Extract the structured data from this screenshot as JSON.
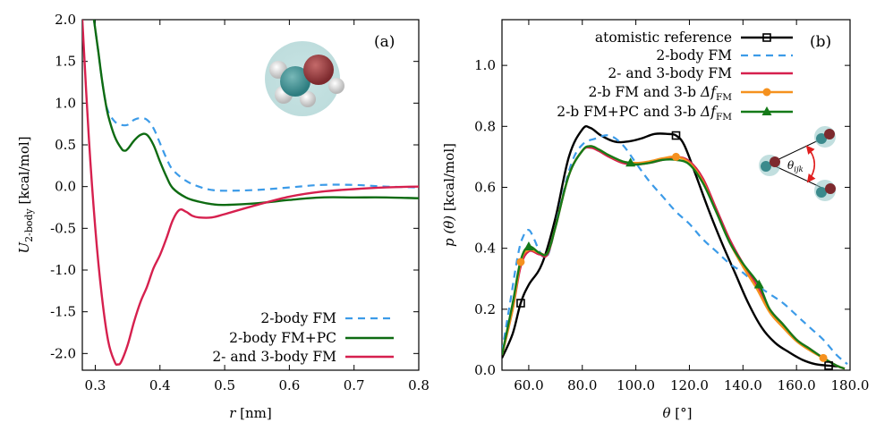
{
  "chart_data": [
    {
      "type": "line",
      "panel_label": "(a)",
      "xlabel_var": "r",
      "xlabel_unit": " [nm]",
      "ylabel_main": "U",
      "ylabel_sub": "2-body",
      "ylabel_unit": " [kcal/mol]",
      "xlim": [
        0.28,
        0.8
      ],
      "ylim": [
        -2.2,
        2.0
      ],
      "xticks": [
        "0.3",
        "0.4",
        "0.5",
        "0.6",
        "0.7",
        "0.8"
      ],
      "xtick_values": [
        0.3,
        0.4,
        0.5,
        0.6,
        0.7,
        0.8
      ],
      "yticks": [
        "2.0",
        "1.5",
        "1.0",
        "0.5",
        "0.0",
        "-0.5",
        "-1.0",
        "-1.5",
        "-2.0"
      ],
      "ytick_values": [
        2.0,
        1.5,
        1.0,
        0.5,
        0.0,
        -0.5,
        -1.0,
        -1.5,
        -2.0
      ],
      "legend_position": "bottom-right",
      "series": [
        {
          "name": "2-body FM",
          "color": "#3c9be8",
          "dash": "dashed",
          "x": [
            0.298,
            0.305,
            0.31,
            0.315,
            0.32,
            0.33,
            0.34,
            0.35,
            0.36,
            0.37,
            0.38,
            0.39,
            0.4,
            0.41,
            0.42,
            0.44,
            0.46,
            0.48,
            0.5,
            0.55,
            0.6,
            0.65,
            0.7,
            0.75,
            0.8
          ],
          "y": [
            2.0,
            1.6,
            1.3,
            1.05,
            0.9,
            0.78,
            0.74,
            0.74,
            0.8,
            0.82,
            0.8,
            0.7,
            0.52,
            0.34,
            0.2,
            0.07,
            0.0,
            -0.04,
            -0.05,
            -0.04,
            -0.01,
            0.02,
            0.02,
            0.0,
            -0.01
          ]
        },
        {
          "name": "2-body FM+PC",
          "color": "#0e6b12",
          "dash": "solid",
          "x": [
            0.298,
            0.305,
            0.31,
            0.315,
            0.32,
            0.33,
            0.34,
            0.345,
            0.35,
            0.36,
            0.37,
            0.38,
            0.39,
            0.4,
            0.41,
            0.42,
            0.44,
            0.46,
            0.48,
            0.5,
            0.55,
            0.6,
            0.65,
            0.7,
            0.75,
            0.8
          ],
          "y": [
            2.0,
            1.6,
            1.3,
            1.05,
            0.85,
            0.6,
            0.46,
            0.43,
            0.45,
            0.55,
            0.62,
            0.62,
            0.5,
            0.3,
            0.12,
            -0.02,
            -0.13,
            -0.18,
            -0.21,
            -0.22,
            -0.2,
            -0.16,
            -0.13,
            -0.13,
            -0.13,
            -0.14
          ]
        },
        {
          "name": "2- and 3-body FM",
          "color": "#d6204e",
          "dash": "solid",
          "x": [
            0.28,
            0.29,
            0.3,
            0.31,
            0.32,
            0.33,
            0.335,
            0.34,
            0.35,
            0.36,
            0.37,
            0.38,
            0.39,
            0.4,
            0.41,
            0.42,
            0.43,
            0.44,
            0.45,
            0.46,
            0.48,
            0.5,
            0.55,
            0.6,
            0.65,
            0.7,
            0.75,
            0.8
          ],
          "y": [
            2.0,
            0.6,
            -0.5,
            -1.3,
            -1.85,
            -2.1,
            -2.13,
            -2.1,
            -1.9,
            -1.62,
            -1.38,
            -1.2,
            -0.98,
            -0.82,
            -0.62,
            -0.4,
            -0.28,
            -0.3,
            -0.35,
            -0.37,
            -0.37,
            -0.33,
            -0.22,
            -0.12,
            -0.06,
            -0.03,
            -0.01,
            0.0
          ]
        }
      ]
    },
    {
      "type": "line",
      "panel_label": "(b)",
      "xlabel_var": "θ",
      "xlabel_unit": " [°]",
      "ylabel_main": "p (θ)",
      "ylabel_unit": " [kcal/mol]",
      "xlim": [
        50,
        180
      ],
      "ylim": [
        0,
        1.15
      ],
      "xticks": [
        "60.0",
        "80.0",
        "100.0",
        "120.0",
        "140.0",
        "160.0",
        "180.0"
      ],
      "xtick_values": [
        60,
        80,
        100,
        120,
        140,
        160,
        180
      ],
      "yticks": [
        "0.0",
        "0.2",
        "0.4",
        "0.6",
        "0.8",
        "1.0"
      ],
      "ytick_values": [
        0.0,
        0.2,
        0.4,
        0.6,
        0.8,
        1.0
      ],
      "legend_position": "top-right",
      "inset_label": "θ",
      "inset_label_sub": "ijk",
      "series": [
        {
          "name": "atomistic reference",
          "color": "#000000",
          "dash": "solid",
          "marker": "square",
          "x": [
            50,
            54,
            57,
            60,
            65,
            70,
            75,
            80,
            83,
            87,
            92,
            97,
            102,
            107,
            112,
            115,
            118,
            122,
            127,
            132,
            137,
            142,
            147,
            152,
            157,
            162,
            167,
            172,
            176
          ],
          "y": [
            0.04,
            0.12,
            0.22,
            0.28,
            0.35,
            0.5,
            0.7,
            0.79,
            0.795,
            0.77,
            0.75,
            0.75,
            0.76,
            0.775,
            0.775,
            0.77,
            0.74,
            0.65,
            0.53,
            0.42,
            0.32,
            0.22,
            0.14,
            0.09,
            0.06,
            0.035,
            0.02,
            0.015,
            0.012
          ],
          "marker_indices": [
            2,
            15,
            27
          ]
        },
        {
          "name": "2-body FM",
          "color": "#3c9be8",
          "dash": "dashed",
          "x": [
            50,
            53,
            56,
            58,
            60,
            62,
            64,
            66,
            68,
            72,
            76,
            80,
            85,
            90,
            95,
            100,
            105,
            110,
            115,
            120,
            125,
            130,
            135,
            140,
            145,
            150,
            155,
            160,
            165,
            170,
            175,
            179
          ],
          "y": [
            0.06,
            0.22,
            0.38,
            0.44,
            0.46,
            0.43,
            0.39,
            0.37,
            0.4,
            0.55,
            0.68,
            0.74,
            0.76,
            0.77,
            0.74,
            0.68,
            0.62,
            0.57,
            0.52,
            0.48,
            0.43,
            0.39,
            0.35,
            0.32,
            0.28,
            0.25,
            0.22,
            0.18,
            0.14,
            0.1,
            0.05,
            0.02
          ]
        },
        {
          "name": "2- and 3-body FM",
          "color": "#d6204e",
          "dash": "solid",
          "x": [
            50,
            54,
            57,
            60,
            64,
            67,
            70,
            75,
            80,
            83,
            86,
            90,
            95,
            100,
            105,
            110,
            115,
            120,
            125,
            130,
            135,
            140,
            145,
            150,
            155,
            160,
            165,
            170,
            175,
            178
          ],
          "y": [
            0.05,
            0.2,
            0.34,
            0.39,
            0.38,
            0.38,
            0.47,
            0.64,
            0.72,
            0.73,
            0.72,
            0.7,
            0.68,
            0.675,
            0.68,
            0.69,
            0.7,
            0.685,
            0.63,
            0.53,
            0.43,
            0.35,
            0.28,
            0.2,
            0.15,
            0.1,
            0.07,
            0.04,
            0.015,
            0.005
          ]
        },
        {
          "name": "2-b FM and 3-b ",
          "name_math": "Δf",
          "name_sub": "FM",
          "color": "#f5911e",
          "dash": "solid",
          "marker": "circle",
          "x": [
            50,
            54,
            57,
            60,
            64,
            67,
            70,
            75,
            80,
            83,
            86,
            90,
            95,
            100,
            105,
            110,
            115,
            120,
            125,
            130,
            135,
            140,
            145,
            150,
            155,
            160,
            165,
            170,
            175,
            178
          ],
          "y": [
            0.05,
            0.2,
            0.355,
            0.395,
            0.385,
            0.385,
            0.47,
            0.64,
            0.72,
            0.735,
            0.725,
            0.705,
            0.685,
            0.68,
            0.685,
            0.695,
            0.7,
            0.68,
            0.62,
            0.52,
            0.42,
            0.34,
            0.27,
            0.19,
            0.14,
            0.095,
            0.065,
            0.04,
            0.015,
            0.005
          ],
          "marker_indices": [
            2,
            16,
            27
          ]
        },
        {
          "name": "2-b FM+PC and 3-b ",
          "name_math": "Δf",
          "name_sub": "FM",
          "color": "#157a18",
          "dash": "solid",
          "marker": "triangle",
          "x": [
            50,
            54,
            57,
            60,
            64,
            67,
            70,
            75,
            80,
            83,
            86,
            90,
            95,
            98,
            100,
            105,
            110,
            115,
            120,
            125,
            130,
            135,
            140,
            146,
            150,
            155,
            160,
            165,
            170,
            175,
            178
          ],
          "y": [
            0.05,
            0.22,
            0.36,
            0.405,
            0.385,
            0.385,
            0.47,
            0.64,
            0.72,
            0.735,
            0.725,
            0.705,
            0.685,
            0.68,
            0.675,
            0.68,
            0.69,
            0.69,
            0.675,
            0.615,
            0.52,
            0.42,
            0.35,
            0.28,
            0.2,
            0.15,
            0.1,
            0.07,
            0.04,
            0.015,
            0.005
          ],
          "marker_indices": [
            3,
            13,
            23
          ]
        }
      ]
    }
  ]
}
